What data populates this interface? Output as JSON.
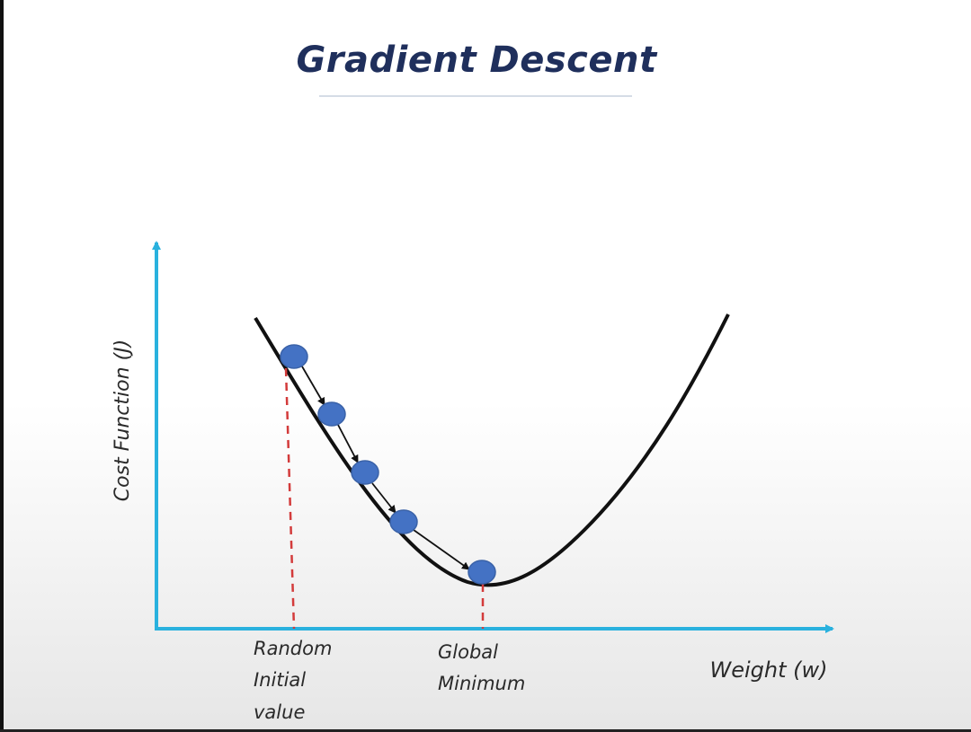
{
  "title": "Gradient Descent",
  "y_axis_label": "Cost Function (J)",
  "x_axis_label": "Weight (w)",
  "annotations": {
    "random_initial": [
      "Random",
      "Initial",
      "value"
    ],
    "global_minimum": [
      "Global",
      "Minimum"
    ]
  },
  "colors": {
    "title": "#1f2f5c",
    "axis": "#29b1de",
    "curve": "#111111",
    "points": "#4472c4",
    "guide_lines": "#d33b3b"
  },
  "descent_steps": 5
}
